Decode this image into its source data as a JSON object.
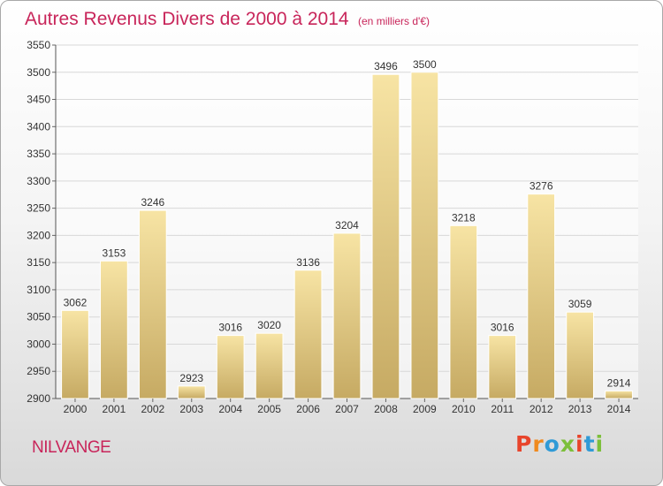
{
  "header": {
    "title": "Autres Revenus Divers de 2000 à 2014",
    "unit": "(en milliers d'€)"
  },
  "footer": {
    "commune": "NILVANGE",
    "brand": "Proxiti",
    "brand_colors": [
      "#e8452c",
      "#f08a1e",
      "#2f9ad6",
      "#7cbf3a",
      "#e8452c",
      "#2f9ad6",
      "#7cbf3a"
    ]
  },
  "colors": {
    "title": "#c8255a",
    "bar_light": "#f7e4a4",
    "bar_dark": "#c6aa63",
    "grid": "#d8d8d8"
  },
  "chart_data": {
    "type": "bar",
    "title": "Autres Revenus Divers de 2000 à 2014",
    "subtitle": "(en milliers d'€)",
    "categories": [
      "2000",
      "2001",
      "2002",
      "2003",
      "2004",
      "2005",
      "2006",
      "2007",
      "2008",
      "2009",
      "2010",
      "2011",
      "2012",
      "2013",
      "2014"
    ],
    "values": [
      3062,
      3153,
      3246,
      2923,
      3016,
      3020,
      3136,
      3204,
      3496,
      3500,
      3218,
      3016,
      3276,
      3059,
      2914
    ],
    "ylim": [
      2900,
      3550
    ],
    "yticks": [
      2900,
      2950,
      3000,
      3050,
      3100,
      3150,
      3200,
      3250,
      3300,
      3350,
      3400,
      3450,
      3500,
      3550
    ],
    "grid": true,
    "xlabel": "",
    "ylabel": ""
  }
}
